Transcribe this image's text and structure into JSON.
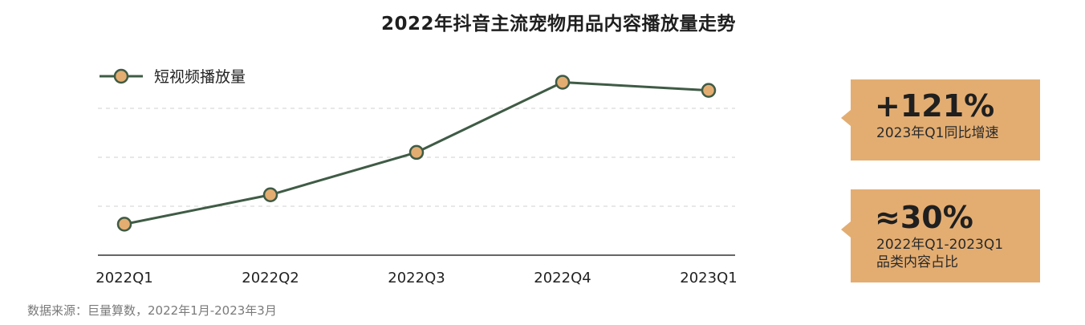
{
  "title": "2022年抖音主流宠物用品内容播放量走势",
  "chart_data": {
    "type": "line",
    "categories": [
      "2022Q1",
      "2022Q2",
      "2022Q3",
      "2022Q4",
      "2023Q1"
    ],
    "series": [
      {
        "name": "短视频播放量",
        "values": [
          19,
          37,
          63,
          106,
          101
        ]
      }
    ],
    "ylim": [
      0,
      120
    ],
    "grid": true,
    "legend_position": "top-left",
    "colors": {
      "line": "#3f5b45",
      "marker_fill": "#e3ad72",
      "grid": "#d9d9d9",
      "axis": "#333333"
    }
  },
  "callouts": [
    {
      "value": "+121%",
      "label_lines": [
        "2023年Q1同比增速"
      ]
    },
    {
      "value": "≈30%",
      "label_lines": [
        "2022年Q1-2023Q1",
        "品类内容占比"
      ]
    }
  ],
  "source": "数据来源：巨量算数，2022年1月-2023年3月"
}
